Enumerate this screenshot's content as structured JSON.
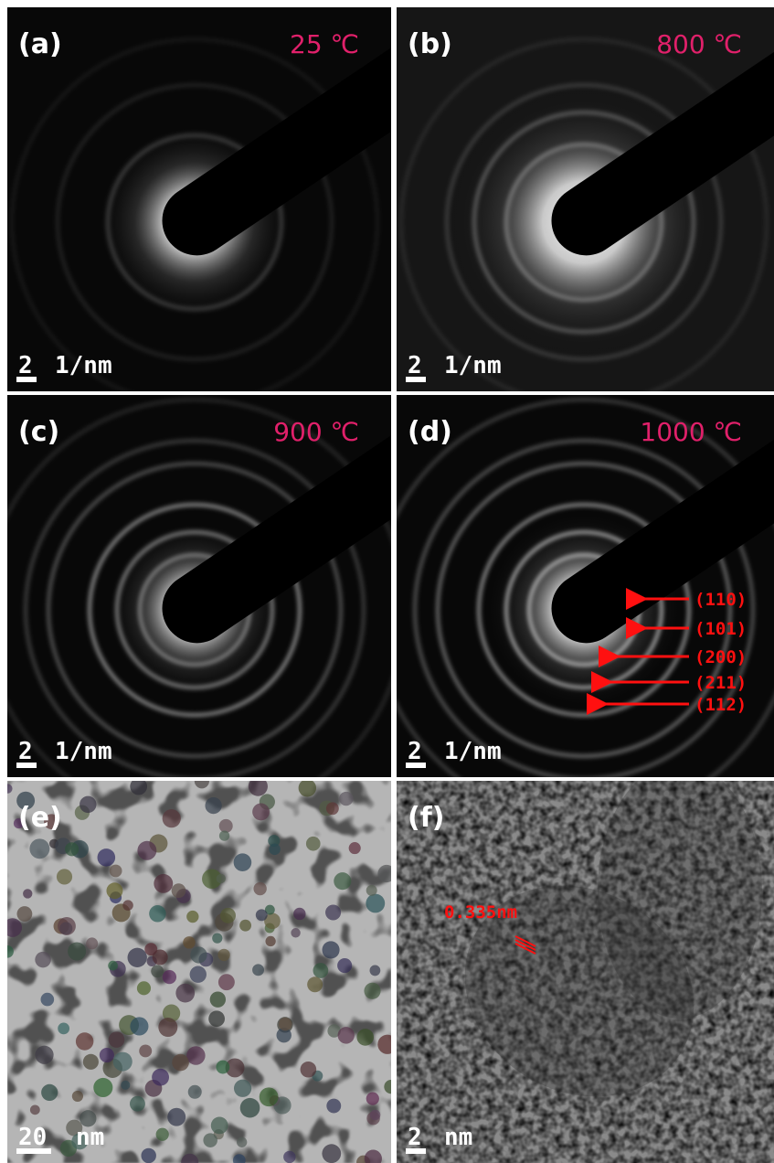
{
  "panels": [
    {
      "label": "(a)",
      "temperature": "25 ℃",
      "scale_value": "2",
      "scale_unit": "1/nm"
    },
    {
      "label": "(b)",
      "temperature": "800 ℃",
      "scale_value": "2",
      "scale_unit": "1/nm"
    },
    {
      "label": "(c)",
      "temperature": "900 ℃",
      "scale_value": "2",
      "scale_unit": "1/nm"
    },
    {
      "label": "(d)",
      "temperature": "1000 ℃",
      "scale_value": "2",
      "scale_unit": "1/nm",
      "indices": [
        "(110)",
        "(101)",
        "(200)",
        "(211)",
        "(112)"
      ]
    },
    {
      "label": "(e)",
      "scale_value": "20",
      "scale_unit": "nm"
    },
    {
      "label": "(f)",
      "scale_value": "2",
      "scale_unit": "nm",
      "spacing": "0.335nm"
    }
  ]
}
